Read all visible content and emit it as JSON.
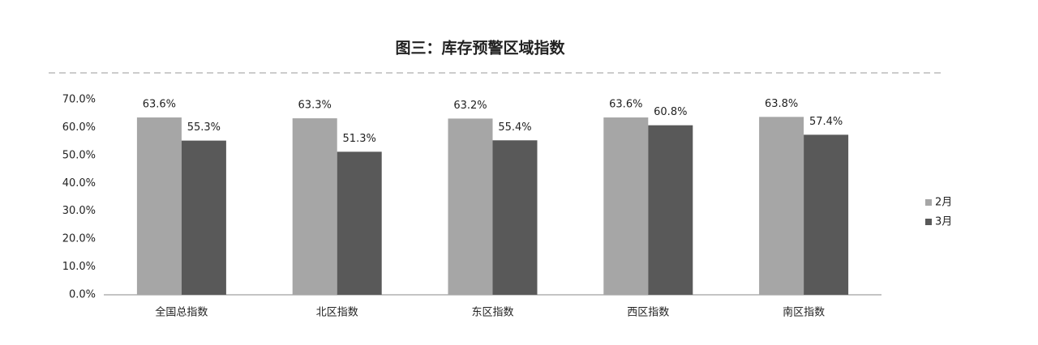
{
  "chart_data": {
    "type": "bar",
    "title": "图三：库存预警区域指数",
    "categories": [
      "全国总指数",
      "北区指数",
      "东区指数",
      "西区指数",
      "南区指数"
    ],
    "series": [
      {
        "name": "2月",
        "color": "#a6a6a6",
        "values": [
          63.6,
          63.3,
          63.2,
          63.6,
          63.8
        ],
        "value_labels": [
          "63.6%",
          "63.3%",
          "63.2%",
          "63.6%",
          "63.8%"
        ]
      },
      {
        "name": "3月",
        "color": "#595959",
        "values": [
          55.3,
          51.3,
          55.4,
          60.8,
          57.4
        ],
        "value_labels": [
          "55.3%",
          "51.3%",
          "55.4%",
          "60.8%",
          "57.4%"
        ]
      }
    ],
    "ylim": [
      0,
      70
    ],
    "yticks": [
      {
        "value": 0,
        "label": "0.0%"
      },
      {
        "value": 10,
        "label": "10.0%"
      },
      {
        "value": 20,
        "label": "20.0%"
      },
      {
        "value": 30,
        "label": "30.0%"
      },
      {
        "value": 40,
        "label": "40.0%"
      },
      {
        "value": 50,
        "label": "50.0%"
      },
      {
        "value": 60,
        "label": "60.0%"
      },
      {
        "value": 70,
        "label": "70.0%"
      }
    ],
    "grid": false,
    "legend": "right"
  }
}
